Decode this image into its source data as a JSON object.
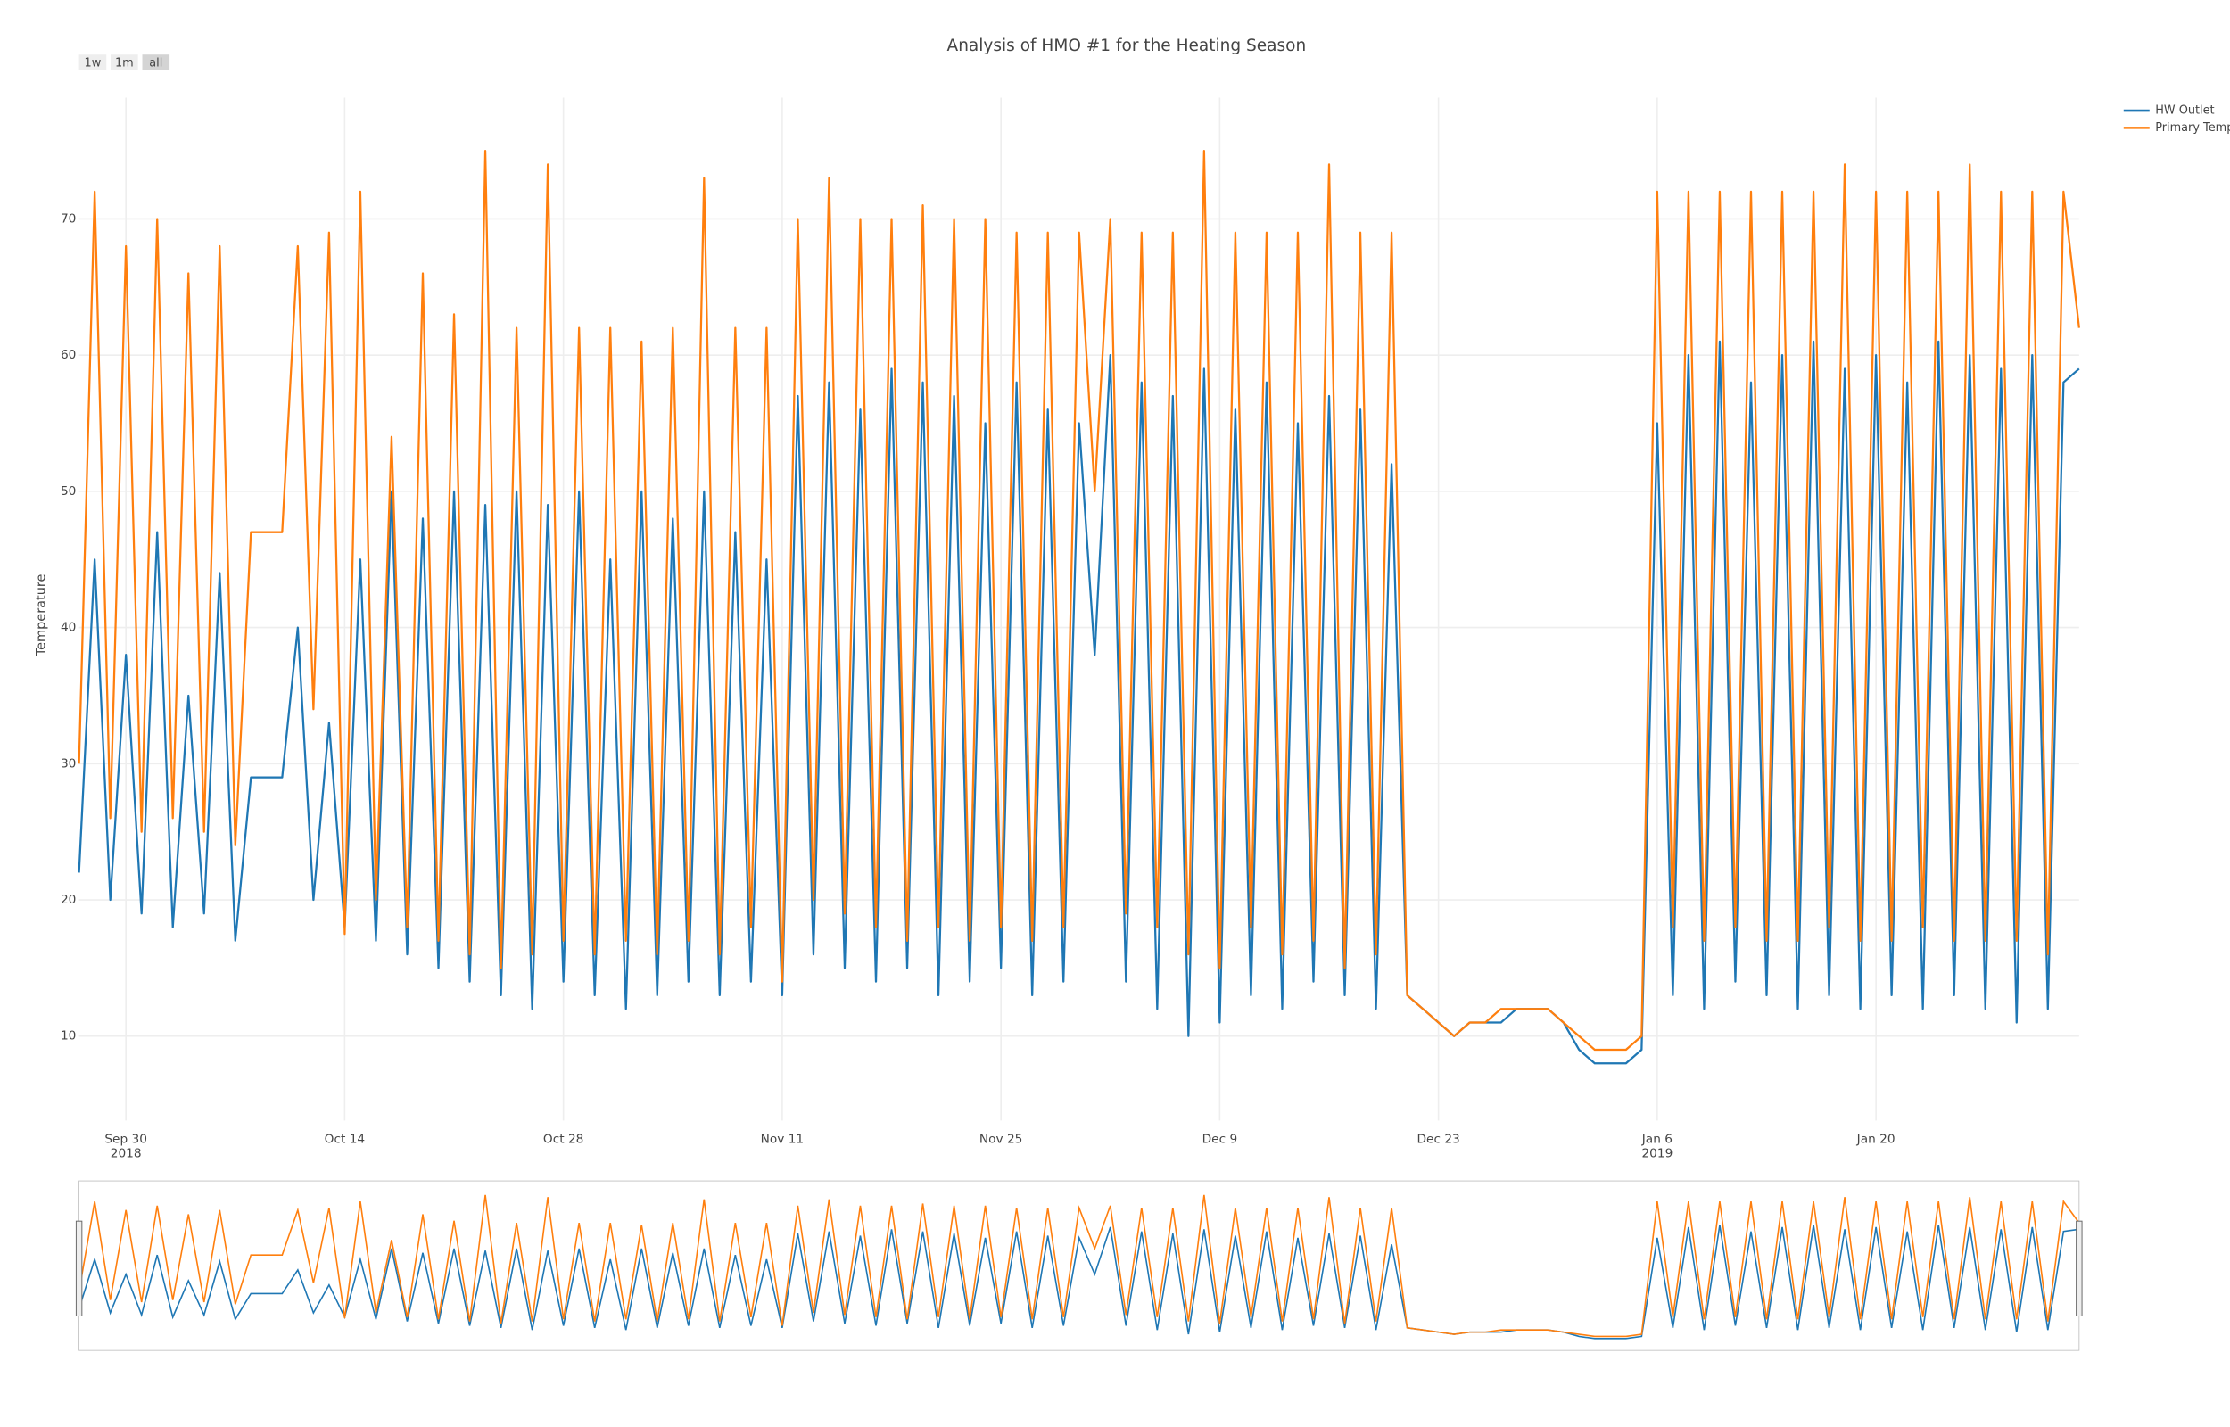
{
  "chart_data": {
    "type": "line",
    "title": "Analysis of HMO #1 for the Heating Season",
    "y_label": "Temperature",
    "range_buttons": [
      "1w",
      "1m",
      "all"
    ],
    "x": [
      "2018-09-27",
      "2018-09-28",
      "2018-09-29",
      "2018-09-30",
      "2018-10-01",
      "2018-10-02",
      "2018-10-03",
      "2018-10-04",
      "2018-10-05",
      "2018-10-06",
      "2018-10-07",
      "2018-10-08",
      "2018-10-09",
      "2018-10-10",
      "2018-10-11",
      "2018-10-12",
      "2018-10-13",
      "2018-10-14",
      "2018-10-15",
      "2018-10-16",
      "2018-10-17",
      "2018-10-18",
      "2018-10-19",
      "2018-10-20",
      "2018-10-21",
      "2018-10-22",
      "2018-10-23",
      "2018-10-24",
      "2018-10-25",
      "2018-10-26",
      "2018-10-27",
      "2018-10-28",
      "2018-10-29",
      "2018-10-30",
      "2018-10-31",
      "2018-11-01",
      "2018-11-02",
      "2018-11-03",
      "2018-11-04",
      "2018-11-05",
      "2018-11-06",
      "2018-11-07",
      "2018-11-08",
      "2018-11-09",
      "2018-11-10",
      "2018-11-11",
      "2018-11-12",
      "2018-11-13",
      "2018-11-14",
      "2018-11-15",
      "2018-11-16",
      "2018-11-17",
      "2018-11-18",
      "2018-11-19",
      "2018-11-20",
      "2018-11-21",
      "2018-11-22",
      "2018-11-23",
      "2018-11-24",
      "2018-11-25",
      "2018-11-26",
      "2018-11-27",
      "2018-11-28",
      "2018-11-29",
      "2018-11-30",
      "2018-12-01",
      "2018-12-02",
      "2018-12-03",
      "2018-12-04",
      "2018-12-05",
      "2018-12-06",
      "2018-12-07",
      "2018-12-08",
      "2018-12-09",
      "2018-12-10",
      "2018-12-11",
      "2018-12-12",
      "2018-12-13",
      "2018-12-14",
      "2018-12-15",
      "2018-12-16",
      "2018-12-17",
      "2018-12-18",
      "2018-12-19",
      "2018-12-20",
      "2018-12-21",
      "2018-12-22",
      "2018-12-23",
      "2018-12-24",
      "2018-12-25",
      "2018-12-26",
      "2018-12-27",
      "2018-12-28",
      "2018-12-29",
      "2018-12-30",
      "2018-12-31",
      "2019-01-01",
      "2019-01-02",
      "2019-01-03",
      "2019-01-04",
      "2019-01-05",
      "2019-01-06",
      "2019-01-07",
      "2019-01-08",
      "2019-01-09",
      "2019-01-10",
      "2019-01-11",
      "2019-01-12",
      "2019-01-13",
      "2019-01-14",
      "2019-01-15",
      "2019-01-16",
      "2019-01-17",
      "2019-01-18",
      "2019-01-19",
      "2019-01-20",
      "2019-01-21",
      "2019-01-22",
      "2019-01-23",
      "2019-01-24",
      "2019-01-25",
      "2019-01-26",
      "2019-01-27",
      "2019-01-28",
      "2019-01-29",
      "2019-01-30",
      "2019-01-31",
      "2019-02-01",
      "2019-02-02"
    ],
    "series": [
      {
        "name": "HW Outlet",
        "color": "#1f77b4",
        "values": [
          22,
          45,
          20,
          38,
          19,
          47,
          18,
          35,
          19,
          44,
          17,
          29,
          29,
          29,
          40,
          20,
          33,
          18,
          45,
          17,
          50,
          16,
          48,
          15,
          50,
          14,
          49,
          13,
          50,
          12,
          49,
          14,
          50,
          13,
          45,
          12,
          50,
          13,
          48,
          14,
          50,
          13,
          47,
          14,
          45,
          13,
          57,
          16,
          58,
          15,
          56,
          14,
          59,
          15,
          58,
          13,
          57,
          14,
          55,
          15,
          58,
          13,
          56,
          14,
          55,
          38,
          60,
          14,
          58,
          12,
          57,
          10,
          59,
          11,
          56,
          13,
          58,
          12,
          55,
          14,
          57,
          13,
          56,
          12,
          52,
          13,
          12,
          11,
          10,
          11,
          11,
          11,
          12,
          12,
          12,
          11,
          9,
          8,
          8,
          8,
          9,
          55,
          13,
          60,
          12,
          61,
          14,
          58,
          13,
          60,
          12,
          61,
          13,
          59,
          12,
          60,
          13,
          58,
          12,
          61,
          13,
          60,
          12,
          59,
          11,
          60,
          12,
          58,
          59
        ]
      },
      {
        "name": "Primary Temp",
        "color": "#ff7f0e",
        "values": [
          30,
          72,
          26,
          68,
          25,
          70,
          26,
          66,
          25,
          68,
          24,
          47,
          47,
          47,
          68,
          34,
          69,
          17.5,
          72,
          20,
          54,
          18,
          66,
          17,
          63,
          16,
          75,
          15,
          62,
          16,
          74,
          17,
          62,
          16,
          62,
          17,
          61,
          16,
          62,
          17,
          73,
          16,
          62,
          18,
          62,
          14,
          70,
          20,
          73,
          19,
          70,
          18,
          70,
          17,
          71,
          18,
          70,
          17,
          70,
          18,
          69,
          17,
          69,
          18,
          69,
          50,
          70,
          19,
          69,
          18,
          69,
          16,
          75,
          15,
          69,
          18,
          69,
          16,
          69,
          17,
          74,
          15,
          69,
          16,
          69,
          13,
          12,
          11,
          10,
          11,
          11,
          12,
          12,
          12,
          12,
          11,
          10,
          9,
          9,
          9,
          10,
          72,
          18,
          72,
          17,
          72,
          18,
          72,
          17,
          72,
          17,
          72,
          18,
          74,
          17,
          72,
          17,
          72,
          18,
          72,
          17,
          74,
          17,
          72,
          17,
          72,
          16,
          72,
          62
        ]
      }
    ],
    "xlim": [
      "2018-09-27",
      "2019-02-02"
    ],
    "xticks": [
      {
        "value": "2018-09-30",
        "label": "Sep 30",
        "year": "2018"
      },
      {
        "value": "2018-10-14",
        "label": "Oct 14"
      },
      {
        "value": "2018-10-28",
        "label": "Oct 28"
      },
      {
        "value": "2018-11-11",
        "label": "Nov 11"
      },
      {
        "value": "2018-11-25",
        "label": "Nov 25"
      },
      {
        "value": "2018-12-09",
        "label": "Dec 9"
      },
      {
        "value": "2018-12-23",
        "label": "Dec 23"
      },
      {
        "value": "2019-01-06",
        "label": "Jan 6",
        "year": "2019"
      },
      {
        "value": "2019-01-20",
        "label": "Jan 20"
      }
    ],
    "ylim": [
      3.8,
      78.9
    ],
    "yticks": [
      10,
      20,
      30,
      40,
      50,
      60,
      70
    ],
    "grid": true,
    "legend": "top-right",
    "range_slider": true
  }
}
